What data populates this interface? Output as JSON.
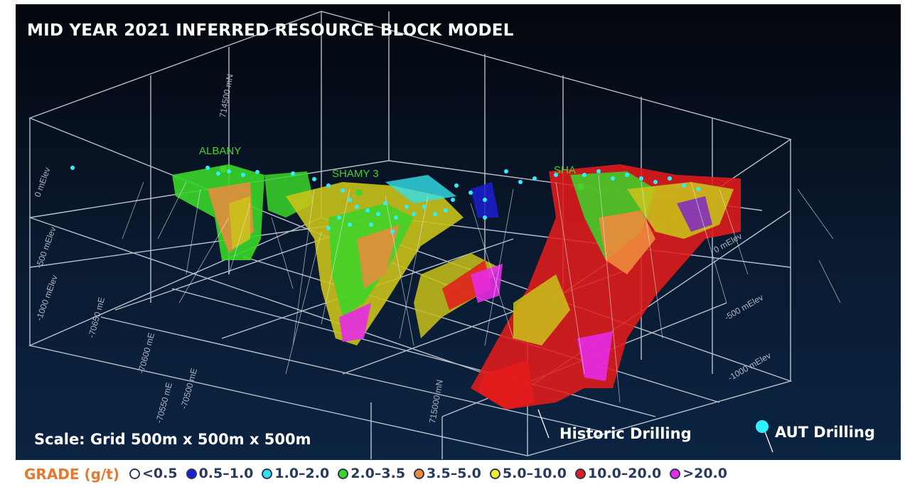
{
  "title": "MID YEAR 2021 INFERRED RESOURCE BLOCK MODEL",
  "scale_text": "Scale: Grid 500m x 500m x 500m",
  "deposit_labels": [
    "ALBANY",
    "SHAMY 3",
    "SHA"
  ],
  "grid_labels": [
    "0 mElev",
    "-500 mElev",
    "-1000 mElev",
    "-70650 mE",
    "-70600 mE",
    "-70550 mE",
    "-70500 mE",
    "0 mElev",
    "-500 mElev",
    "-1000 mElev",
    "714500 mN",
    "715000 mN"
  ],
  "drilling_key": {
    "historic": "Historic Drilling",
    "aut": "AUT Drilling"
  },
  "legend": {
    "title": "GRADE (g/t)",
    "items": [
      {
        "label": "<0.5",
        "color": "#ffffff",
        "hollow": true
      },
      {
        "label": "0.5–1.0",
        "color": "#1b1fd1"
      },
      {
        "label": "1.0–2.0",
        "color": "#34e0ec"
      },
      {
        "label": "2.0–3.5",
        "color": "#3ad62a"
      },
      {
        "label": "3.5–5.0",
        "color": "#ee8a3c"
      },
      {
        "label": "5.0–10.0",
        "color": "#f2ee2a"
      },
      {
        "label": "10.0–20.0",
        "color": "#e31b1b"
      },
      {
        "label": ">20.0",
        "color": "#e62be6"
      }
    ]
  },
  "colors": {
    "background_top": "#03060d",
    "background_bottom": "#0b2442",
    "grid": "#d8dde6",
    "drillhole_marker": "#2ff0ff",
    "site_label": "#47d12a",
    "legend_title": "#e8782d"
  }
}
